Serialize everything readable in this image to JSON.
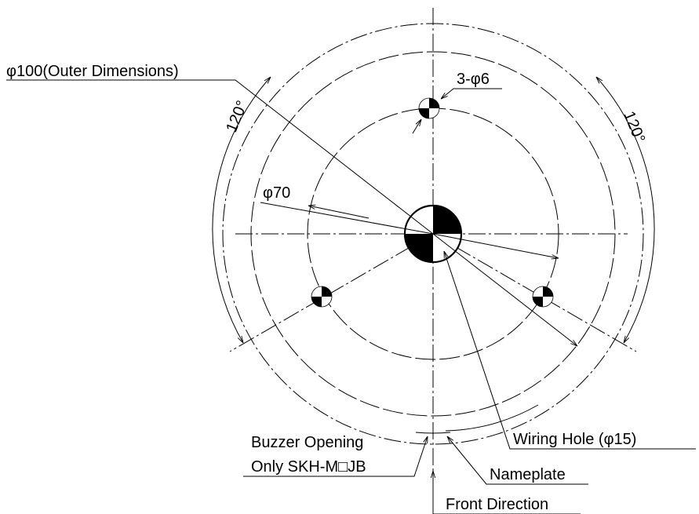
{
  "labels": {
    "outer_dimensions": "φ100(Outer Dimensions)",
    "mount_holes": "3-φ6",
    "angle_left": "120°",
    "angle_right": "120°",
    "inner_diameter": "φ70",
    "wiring_hole": "Wiring Hole (φ15)",
    "nameplate": "Nameplate",
    "buzzer_line1": "Buzzer Opening",
    "buzzer_line2": "Only SKH-M□JB",
    "front_direction": "Front Direction"
  }
}
